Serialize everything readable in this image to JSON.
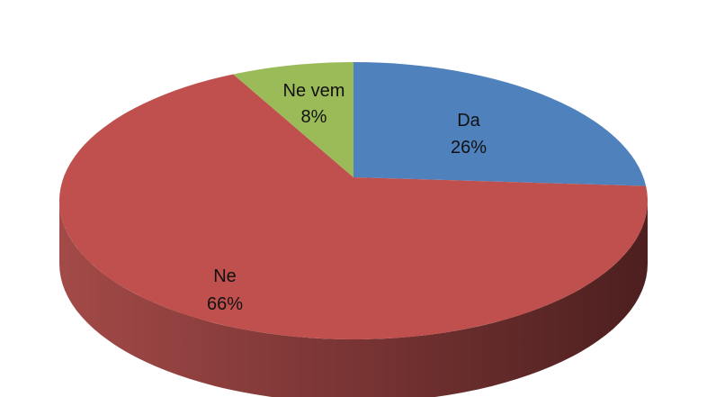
{
  "chart_data": {
    "type": "pie",
    "style": "3d",
    "title": "",
    "slices": [
      {
        "label": "Da",
        "value": 26,
        "value_label": "26%",
        "color": "#4f81bd"
      },
      {
        "label": "Ne",
        "value": 66,
        "value_label": "66%",
        "color": "#c0504d"
      },
      {
        "label": "Ne vem",
        "value": 8,
        "value_label": "8%",
        "color": "#9bbb59"
      }
    ],
    "start": "12 o'clock",
    "direction": "clockwise",
    "side_colors": [
      "#a34a48",
      "#4d1f1f"
    ]
  }
}
